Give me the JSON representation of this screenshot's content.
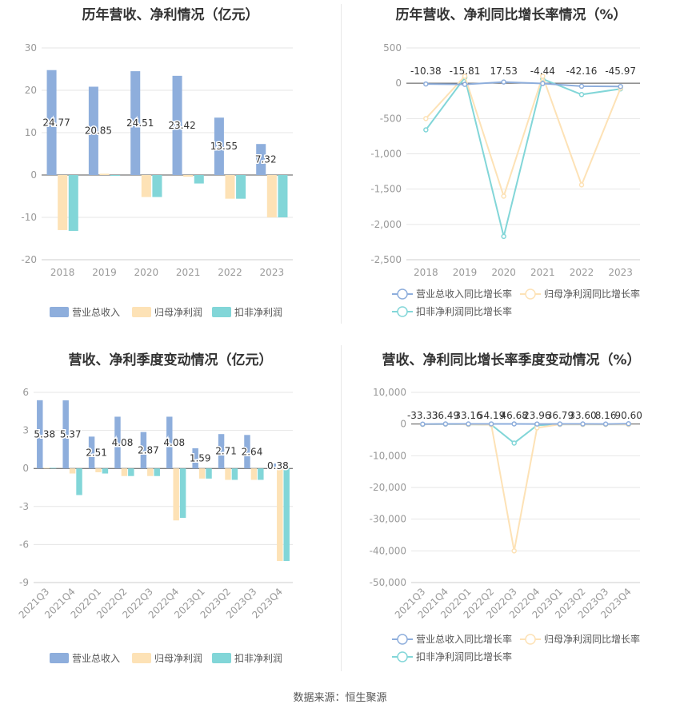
{
  "source_text": "数据来源：恒生聚源",
  "chart_data": [
    {
      "id": "annual_revenue_profit",
      "type": "bar",
      "title": "历年营收、净利情况（亿元）",
      "categories": [
        "2018",
        "2019",
        "2020",
        "2021",
        "2022",
        "2023"
      ],
      "ylim": [
        -20,
        30
      ],
      "yticks": [
        -20,
        -10,
        0,
        10,
        20,
        30
      ],
      "series": [
        {
          "name": "营业总收入",
          "color": "#8eaedc",
          "values": [
            24.77,
            20.85,
            24.51,
            23.42,
            13.55,
            7.32
          ],
          "labels": [
            "24.77",
            "20.85",
            "24.51",
            "23.42",
            "13.55",
            "7.32"
          ]
        },
        {
          "name": "归母净利润",
          "color": "#fde2b6",
          "values": [
            -13.0,
            0.3,
            -5.2,
            -0.4,
            -5.6,
            -10.0
          ]
        },
        {
          "name": "扣非净利润",
          "color": "#82d6d8",
          "values": [
            -13.2,
            -0.2,
            -5.2,
            -2.0,
            -5.6,
            -10.0
          ]
        }
      ],
      "legend_position": "bottom",
      "grid": true
    },
    {
      "id": "annual_growth",
      "type": "line",
      "title": "历年营收、净利同比增长率情况（%）",
      "categories": [
        "2018",
        "2019",
        "2020",
        "2021",
        "2022",
        "2023"
      ],
      "ylim": [
        -2500,
        500
      ],
      "yticks": [
        -2500,
        -2000,
        -1500,
        -1000,
        -500,
        0,
        500
      ],
      "series": [
        {
          "name": "营业总收入同比增长率",
          "color": "#8eaedc",
          "values": [
            -10.38,
            -15.81,
            17.53,
            -4.44,
            -42.16,
            -45.97
          ],
          "labels": [
            "-10.38",
            "-15.81",
            "17.53",
            "-4.44",
            "-42.16",
            "-45.97"
          ]
        },
        {
          "name": "归母净利润同比增长率",
          "color": "#fde2b6",
          "values": [
            -500,
            100,
            -1600,
            100,
            -1440,
            -70
          ]
        },
        {
          "name": "扣非净利润同比增长率",
          "color": "#82d6d8",
          "values": [
            -660,
            80,
            -2170,
            60,
            -160,
            -80
          ]
        }
      ],
      "legend_position": "bottom",
      "grid": true
    },
    {
      "id": "quarterly_revenue_profit",
      "type": "bar",
      "title": "营收、净利季度变动情况（亿元）",
      "categories": [
        "2021Q3",
        "2021Q4",
        "2022Q1",
        "2022Q2",
        "2022Q3",
        "2022Q4",
        "2023Q1",
        "2023Q2",
        "2023Q3",
        "2023Q4"
      ],
      "ylim": [
        -9,
        6
      ],
      "yticks": [
        -9,
        -6,
        -3,
        0,
        3,
        6
      ],
      "series": [
        {
          "name": "营业总收入",
          "color": "#8eaedc",
          "values": [
            5.38,
            5.37,
            2.51,
            4.08,
            2.87,
            4.08,
            1.59,
            2.71,
            2.64,
            0.38
          ],
          "labels": [
            "5.38",
            "5.37",
            "2.51",
            "4.08",
            "2.87",
            "4.08",
            "1.59",
            "2.71",
            "2.64",
            "0.38"
          ]
        },
        {
          "name": "归母净利润",
          "color": "#fde2b6",
          "values": [
            0.05,
            -0.4,
            -0.3,
            -0.6,
            -0.6,
            -4.1,
            -0.8,
            -0.9,
            -0.9,
            -7.3
          ]
        },
        {
          "name": "扣非净利润",
          "color": "#82d6d8",
          "values": [
            0.05,
            -2.1,
            -0.4,
            -0.6,
            -0.6,
            -3.9,
            -0.8,
            -0.9,
            -0.9,
            -7.3
          ]
        }
      ],
      "legend_position": "bottom",
      "grid": true
    },
    {
      "id": "quarterly_growth",
      "type": "line",
      "title": "营收、净利同比增长率季度变动情况（%）",
      "categories": [
        "2021Q3",
        "2021Q4",
        "2022Q1",
        "2022Q2",
        "2022Q3",
        "2022Q4",
        "2023Q1",
        "2023Q2",
        "2023Q3",
        "2023Q4"
      ],
      "ylim": [
        -50000,
        10000
      ],
      "yticks": [
        -50000,
        -40000,
        -30000,
        -20000,
        -10000,
        0,
        10000
      ],
      "series": [
        {
          "name": "营业总收入同比增长率",
          "color": "#8eaedc",
          "values": [
            -33.33,
            36.49,
            33.16,
            54.19,
            46.68,
            23.96,
            36.79,
            33.6,
            8.16,
            90.6
          ],
          "labels": [
            "-33.33",
            "36.49",
            "33.16",
            "54.19",
            "46.68",
            "23.96",
            "36.79",
            "33.60",
            "8.16",
            "90.60"
          ]
        },
        {
          "name": "归母净利润同比增长率",
          "color": "#fde2b6",
          "values": [
            -100,
            0,
            -100,
            -200,
            -40000,
            -1200,
            -100,
            -100,
            -100,
            -100
          ]
        },
        {
          "name": "扣非净利润同比增长率",
          "color": "#82d6d8",
          "values": [
            -100,
            0,
            -100,
            -200,
            -6000,
            -400,
            -100,
            -100,
            -100,
            -100
          ]
        }
      ],
      "legend_position": "bottom",
      "grid": true
    }
  ]
}
